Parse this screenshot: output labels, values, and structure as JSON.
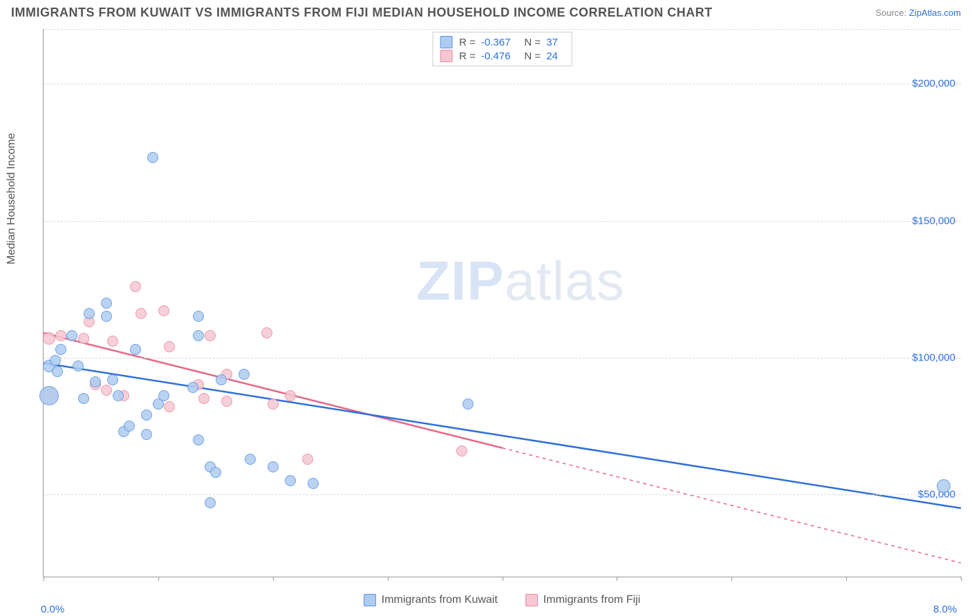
{
  "header": {
    "title": "IMMIGRANTS FROM KUWAIT VS IMMIGRANTS FROM FIJI MEDIAN HOUSEHOLD INCOME CORRELATION CHART",
    "source_label": "Source:",
    "source_link": "ZipAtlas.com"
  },
  "watermark": {
    "bold": "ZIP",
    "light": "atlas"
  },
  "chart": {
    "type": "scatter",
    "ylabel": "Median Household Income",
    "background_color": "#ffffff",
    "grid_color": "#d8d8d8",
    "xlim": [
      0.0,
      8.0
    ],
    "ylim": [
      20000,
      220000
    ],
    "x_ticks": [
      0.0,
      1.0,
      2.0,
      3.0,
      4.0,
      5.0,
      6.0,
      7.0,
      8.0
    ],
    "x_tick_labels": {
      "min": "0.0%",
      "max": "8.0%"
    },
    "y_ticks": [
      50000,
      100000,
      150000,
      200000
    ],
    "y_tick_labels": [
      "$50,000",
      "$100,000",
      "$150,000",
      "$200,000"
    ],
    "stats": [
      {
        "series": "kuwait",
        "R_label": "R =",
        "R": "-0.367",
        "N_label": "N =",
        "N": "37"
      },
      {
        "series": "fiji",
        "R_label": "R =",
        "R": "-0.476",
        "N_label": "N =",
        "N": "24"
      }
    ],
    "legend": [
      {
        "key": "kuwait",
        "label": "Immigrants from Kuwait"
      },
      {
        "key": "fiji",
        "label": "Immigrants from Fiji"
      }
    ],
    "series": {
      "kuwait": {
        "fill": "#aeccf1",
        "stroke": "#5a93da",
        "line_color": "#2e6fd9",
        "line_width": 2.5,
        "trend_solid_end_x": 8.0,
        "trend": {
          "x1": 0.0,
          "y1": 98000,
          "x2": 8.0,
          "y2": 45000
        },
        "points": [
          {
            "x": 0.05,
            "y": 97000,
            "r": 9
          },
          {
            "x": 0.05,
            "y": 86000,
            "r": 14
          },
          {
            "x": 0.1,
            "y": 99000,
            "r": 8
          },
          {
            "x": 0.12,
            "y": 95000,
            "r": 8
          },
          {
            "x": 0.15,
            "y": 103000,
            "r": 8
          },
          {
            "x": 0.25,
            "y": 108000,
            "r": 8
          },
          {
            "x": 0.3,
            "y": 97000,
            "r": 8
          },
          {
            "x": 0.35,
            "y": 85000,
            "r": 8
          },
          {
            "x": 0.4,
            "y": 116000,
            "r": 8
          },
          {
            "x": 0.45,
            "y": 91000,
            "r": 8
          },
          {
            "x": 0.55,
            "y": 120000,
            "r": 8
          },
          {
            "x": 0.55,
            "y": 115000,
            "r": 8
          },
          {
            "x": 0.6,
            "y": 92000,
            "r": 8
          },
          {
            "x": 0.65,
            "y": 86000,
            "r": 8
          },
          {
            "x": 0.7,
            "y": 73000,
            "r": 8
          },
          {
            "x": 0.75,
            "y": 75000,
            "r": 8
          },
          {
            "x": 0.8,
            "y": 103000,
            "r": 8
          },
          {
            "x": 0.9,
            "y": 79000,
            "r": 8
          },
          {
            "x": 0.9,
            "y": 72000,
            "r": 8
          },
          {
            "x": 0.95,
            "y": 173000,
            "r": 8
          },
          {
            "x": 1.0,
            "y": 83000,
            "r": 8
          },
          {
            "x": 1.05,
            "y": 86000,
            "r": 8
          },
          {
            "x": 1.3,
            "y": 89000,
            "r": 8
          },
          {
            "x": 1.35,
            "y": 70000,
            "r": 8
          },
          {
            "x": 1.35,
            "y": 115000,
            "r": 8
          },
          {
            "x": 1.35,
            "y": 108000,
            "r": 8
          },
          {
            "x": 1.45,
            "y": 47000,
            "r": 8
          },
          {
            "x": 1.45,
            "y": 60000,
            "r": 8
          },
          {
            "x": 1.5,
            "y": 58000,
            "r": 8
          },
          {
            "x": 1.55,
            "y": 92000,
            "r": 8
          },
          {
            "x": 1.75,
            "y": 94000,
            "r": 8
          },
          {
            "x": 1.8,
            "y": 63000,
            "r": 8
          },
          {
            "x": 2.0,
            "y": 60000,
            "r": 8
          },
          {
            "x": 2.15,
            "y": 55000,
            "r": 8
          },
          {
            "x": 2.35,
            "y": 54000,
            "r": 8
          },
          {
            "x": 3.7,
            "y": 83000,
            "r": 8
          },
          {
            "x": 7.85,
            "y": 53000,
            "r": 10
          }
        ]
      },
      "fiji": {
        "fill": "#f6c7d2",
        "stroke": "#e48aa1",
        "line_color": "#e26a88",
        "line_width": 2.5,
        "trend_solid_end_x": 4.0,
        "trend": {
          "x1": 0.0,
          "y1": 109000,
          "x2": 8.0,
          "y2": 25000
        },
        "points": [
          {
            "x": 0.05,
            "y": 107000,
            "r": 9
          },
          {
            "x": 0.05,
            "y": 86000,
            "r": 12
          },
          {
            "x": 0.15,
            "y": 108000,
            "r": 8
          },
          {
            "x": 0.35,
            "y": 107000,
            "r": 8
          },
          {
            "x": 0.4,
            "y": 113000,
            "r": 8
          },
          {
            "x": 0.45,
            "y": 90000,
            "r": 8
          },
          {
            "x": 0.55,
            "y": 88000,
            "r": 8
          },
          {
            "x": 0.6,
            "y": 106000,
            "r": 8
          },
          {
            "x": 0.7,
            "y": 86000,
            "r": 8
          },
          {
            "x": 0.8,
            "y": 126000,
            "r": 8
          },
          {
            "x": 0.85,
            "y": 116000,
            "r": 8
          },
          {
            "x": 1.05,
            "y": 117000,
            "r": 8
          },
          {
            "x": 1.1,
            "y": 82000,
            "r": 8
          },
          {
            "x": 1.1,
            "y": 104000,
            "r": 8
          },
          {
            "x": 1.35,
            "y": 90000,
            "r": 8
          },
          {
            "x": 1.4,
            "y": 85000,
            "r": 8
          },
          {
            "x": 1.45,
            "y": 108000,
            "r": 8
          },
          {
            "x": 1.6,
            "y": 94000,
            "r": 8
          },
          {
            "x": 1.6,
            "y": 84000,
            "r": 8
          },
          {
            "x": 1.95,
            "y": 109000,
            "r": 8
          },
          {
            "x": 2.0,
            "y": 83000,
            "r": 8
          },
          {
            "x": 2.15,
            "y": 86000,
            "r": 8
          },
          {
            "x": 2.3,
            "y": 63000,
            "r": 8
          },
          {
            "x": 3.65,
            "y": 66000,
            "r": 8
          }
        ]
      }
    }
  }
}
